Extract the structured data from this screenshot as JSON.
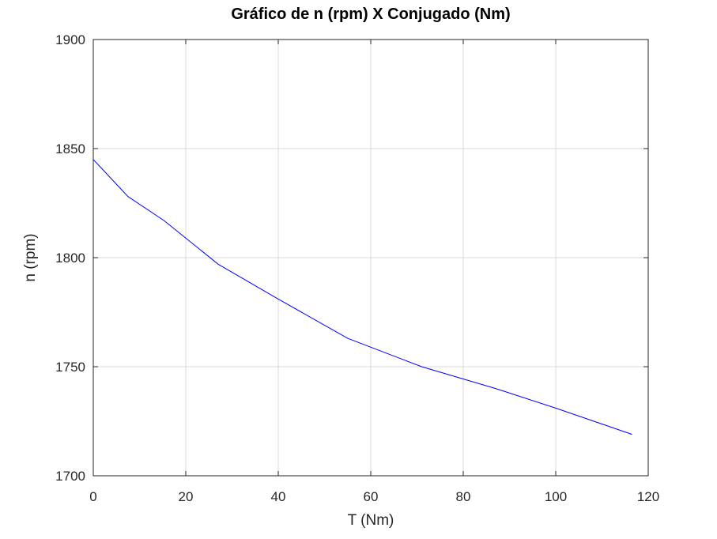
{
  "chart_data": {
    "type": "line",
    "title": "Gráfico de n (rpm) X Conjugado (Nm)",
    "xlabel": "T (Nm)",
    "ylabel": "n (rpm)",
    "xlim": [
      0,
      120
    ],
    "ylim": [
      1700,
      1900
    ],
    "xticks": [
      "0",
      "20",
      "40",
      "60",
      "80",
      "100",
      "120"
    ],
    "yticks": [
      "1700",
      "1750",
      "1800",
      "1850",
      "1900"
    ],
    "grid": true,
    "legend": "none",
    "series": [
      {
        "color": "#0000ff",
        "x": [
          0,
          7.5,
          15.3,
          27,
          40,
          55,
          71,
          87,
          100,
          116.5
        ],
        "y": [
          1845,
          1828,
          1817,
          1797,
          1781,
          1763,
          1750,
          1740,
          1731,
          1719
        ]
      }
    ]
  }
}
